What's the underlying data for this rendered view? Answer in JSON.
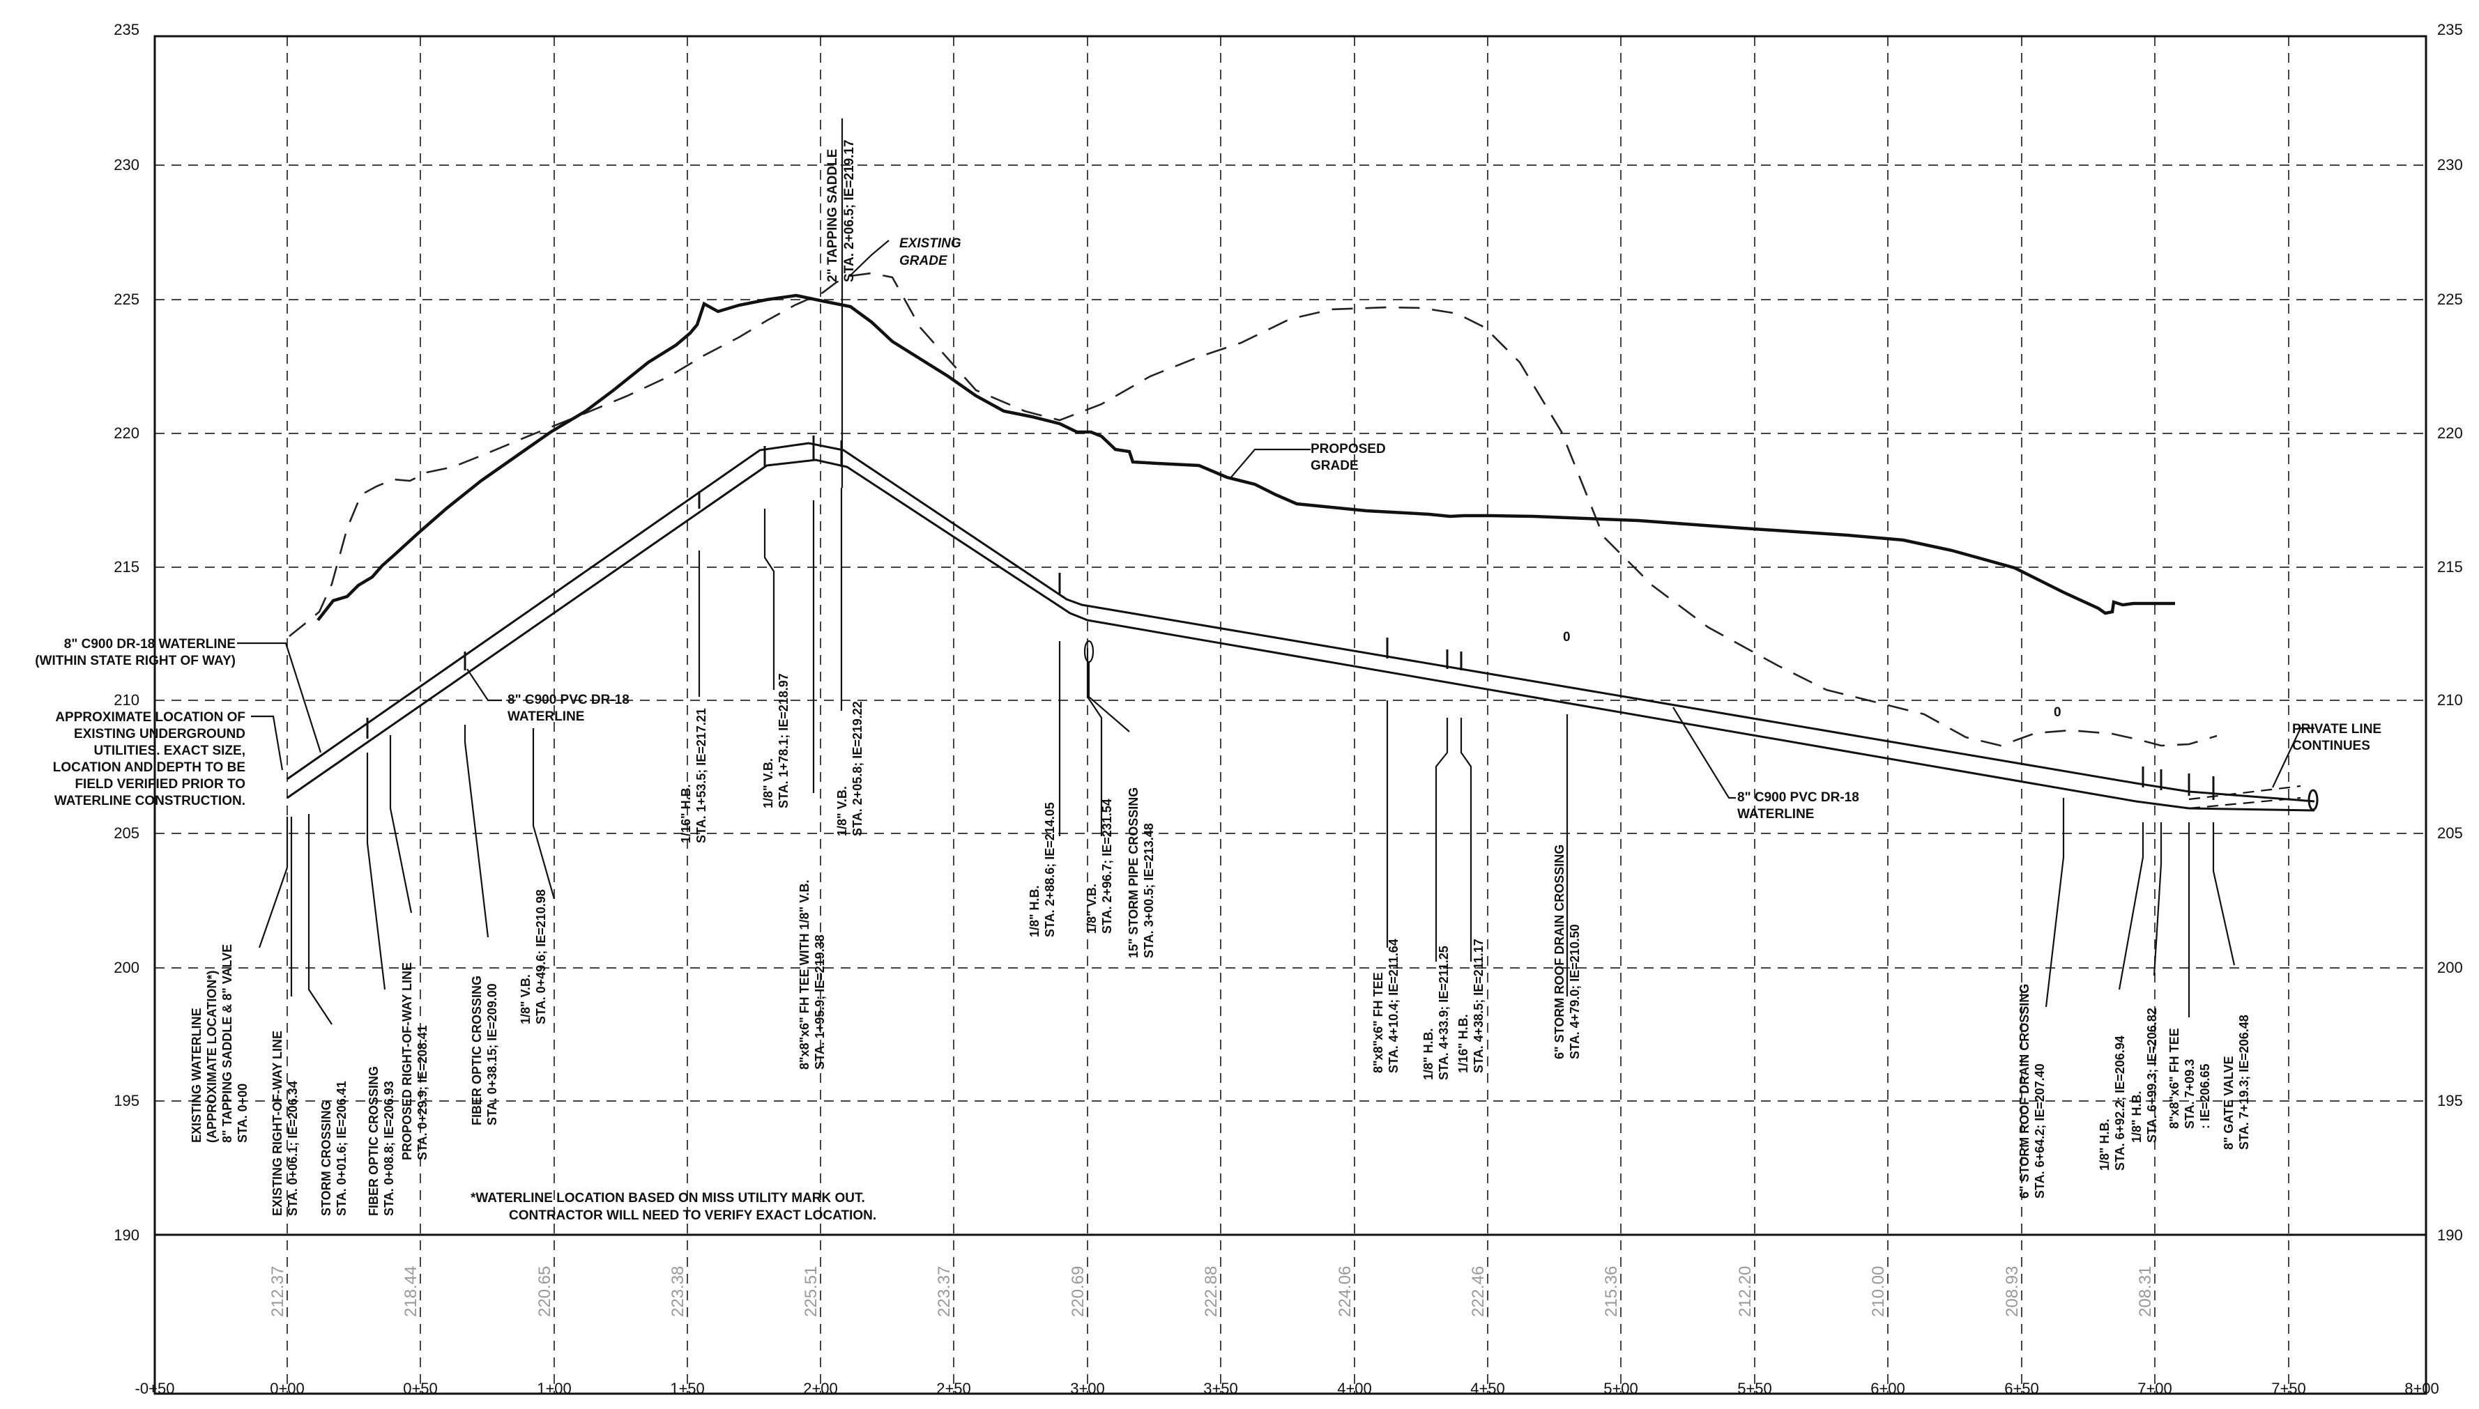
{
  "axes": {
    "elevations": [
      "235",
      "230",
      "225",
      "220",
      "215",
      "210",
      "205",
      "200",
      "195",
      "190"
    ],
    "stations": [
      "-0+50",
      "0+00",
      "0+50",
      "1+00",
      "1+50",
      "2+00",
      "2+50",
      "3+00",
      "3+50",
      "4+00",
      "4+50",
      "5+00",
      "5+50",
      "6+00",
      "6+50",
      "7+00",
      "7+50",
      "8+00"
    ]
  },
  "existing_grades": [
    "212.37",
    "218.44",
    "220.65",
    "223.38",
    "225.51",
    "223.37",
    "220.69",
    "222.88",
    "224.06",
    "222.46",
    "215.36",
    "212.20",
    "210.00",
    "208.93",
    "208.31"
  ],
  "profile_labels": {
    "existing_grade": [
      "EXISTING",
      "GRADE"
    ],
    "proposed_grade": [
      "PROPOSED",
      "GRADE"
    ],
    "pipe_left": [
      "8\" C900 PVC DR-18",
      "WATERLINE"
    ],
    "pipe_right": [
      "8\" C900 PVC DR-18",
      "WATERLINE"
    ],
    "waterline_callout": [
      "8\" C900 DR-18 WATERLINE",
      "(WITHIN STATE RIGHT OF WAY)"
    ],
    "approx_location": [
      "APPROXIMATE LOCATION OF",
      "EXISTING UNDERGROUND",
      "UTILITIES. EXACT SIZE,",
      "LOCATION AND DEPTH TO BE",
      "FIELD VERIFIED PRIOR TO",
      "WATERLINE CONSTRUCTION."
    ],
    "private_line": [
      "PRIVATE LINE",
      "CONTINUES"
    ],
    "note": [
      "*WATERLINE LOCATION BASED ON MISS UTILITY MARK OUT.",
      "CONTRACTOR WILL NEED TO VERIFY EXACT LOCATION."
    ],
    "tapping_top": [
      "2\" TAPPING SADDLE",
      "STA. 2+06.5; IE=219.17"
    ],
    "zero_marks": [
      "0",
      "0"
    ]
  },
  "callouts": [
    {
      "lines": [
        "EXISTING WATERLINE",
        "(APPROXIMATE LOCATION*)",
        "8\" TAPPING SADDLE & 8\" VALVE",
        "STA. 0+00"
      ]
    },
    {
      "lines": [
        "EXISTING RIGHT-OF-WAY LINE",
        "STA. 0+06.1; IE=206.34"
      ]
    },
    {
      "lines": [
        "STORM CROSSING",
        "STA. 0+01.6; IE=206.41"
      ]
    },
    {
      "lines": [
        "FIBER OPTIC CROSSING",
        "STA. 0+08.8; IE=206.93"
      ]
    },
    {
      "lines": [
        "PROPOSED RIGHT-OF-WAY LINE",
        "STA. 0+29.9; IE=208.41"
      ]
    },
    {
      "lines": [
        "FIBER OPTIC CROSSING",
        "STA. 0+38.15; IE=209.00"
      ]
    },
    {
      "lines": [
        "1/8\" V.B.",
        "STA. 0+49.6; IE=210.98"
      ]
    },
    {
      "lines": [
        "1/16\" H.B.",
        "STA. 1+53.5; IE=217.21"
      ]
    },
    {
      "lines": [
        "1/8\" V.B.",
        "STA. 1+78.1; IE=218.97"
      ]
    },
    {
      "lines": [
        "8\"x8\"x6\" FH TEE WITH 1/8\" V.B.",
        "STA. 1+95.9; IE=219.38"
      ]
    },
    {
      "lines": [
        "1/8\" V.B.",
        "STA. 2+05.8; IE=219.22"
      ]
    },
    {
      "lines": [
        "1/8\" H.B.",
        "STA. 2+88.6; IE=214.05"
      ]
    },
    {
      "lines": [
        "1/8\" V.B.",
        "STA. 2+96.7; IE=231.54"
      ]
    },
    {
      "lines": [
        "15\" STORM PIPE CROSSING",
        "STA. 3+00.5; IE=213.48"
      ]
    },
    {
      "lines": [
        "8\"x8\"x6\" FH TEE",
        "STA. 4+10.4; IE=211.64"
      ]
    },
    {
      "lines": [
        "1/8\" H.B.",
        "STA. 4+33.9; IE=211.25"
      ]
    },
    {
      "lines": [
        "1/16\" H.B.",
        "STA. 4+38.5; IE=211.17"
      ]
    },
    {
      "lines": [
        "6\" STORM ROOF DRAIN CROSSING",
        "STA. 4+79.0; IE=210.50"
      ]
    },
    {
      "lines": [
        "6\" STORM ROOF DRAIN CROSSING",
        "STA. 6+64.2; IE=207.40"
      ]
    },
    {
      "lines": [
        "1/8\" H.B.",
        "STA. 6+92.2; IE=206.94"
      ]
    },
    {
      "lines": [
        "1/8\" H.B.",
        "STA. 6+99.3; IE=206.82"
      ]
    },
    {
      "lines": [
        "8\"x8\"x6\" FH TEE",
        "STA. 7+09.3",
        ": IE=206.65"
      ]
    },
    {
      "lines": [
        "8\" GATE VALVE",
        "STA. 7+19.3; IE=206.48"
      ]
    }
  ]
}
